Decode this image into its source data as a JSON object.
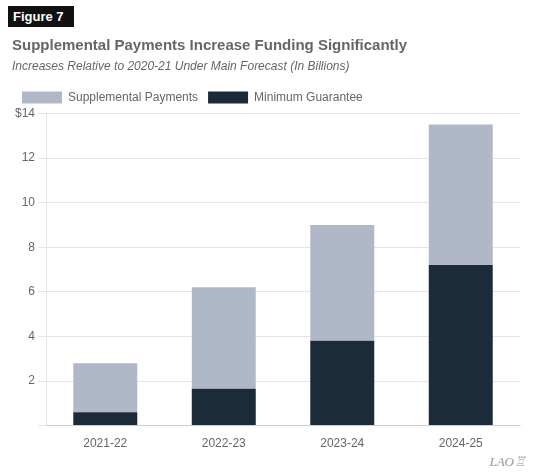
{
  "chart_data": {
    "type": "bar",
    "stacked": true,
    "title": "Supplemental Payments Increase Funding Significantly",
    "subtitle": "Increases Relative to 2020-21 Under Main Forecast (In Billions)",
    "annotations": [
      "Figure 7",
      "LAO♖"
    ],
    "categories": [
      "2021-22",
      "2022-23",
      "2023-24",
      "2024-25"
    ],
    "series": [
      {
        "name": "Minimum Guarantee",
        "color": "#1c2b3a",
        "values": [
          0.6,
          1.65,
          3.8,
          7.2
        ]
      },
      {
        "name": "Supplemental Payments",
        "color": "#b0b8c8",
        "values": [
          2.2,
          4.55,
          5.2,
          6.3
        ]
      }
    ],
    "ylim": [
      0,
      14
    ],
    "yticks": [
      {
        "value": 0,
        "label": ""
      },
      2,
      4,
      6,
      8,
      10,
      12,
      {
        "value": 14,
        "label": "$14"
      }
    ],
    "grid": true,
    "legend": "upper left"
  }
}
